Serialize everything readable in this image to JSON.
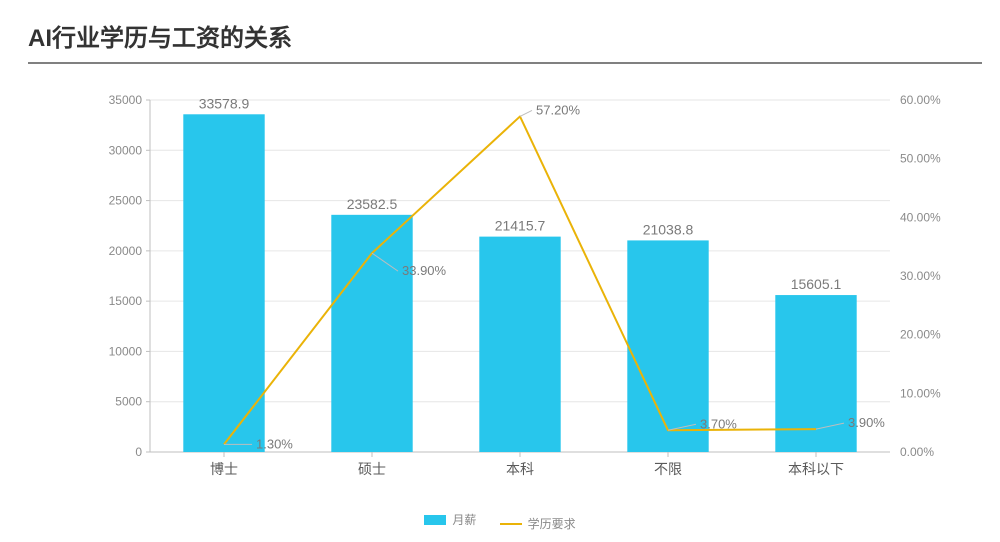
{
  "title": "AI行业学历与工资的关系",
  "title_fontsize": 24,
  "title_color": "#333333",
  "rule_color": "#808080",
  "chart": {
    "type": "bar+line",
    "categories": [
      "博士",
      "硕士",
      "本科",
      "不限",
      "本科以下"
    ],
    "bar_series": {
      "name": "月薪",
      "values": [
        33578.9,
        23582.5,
        21415.7,
        21038.8,
        15605.1
      ],
      "color": "#28c6ec",
      "bar_width": 0.55,
      "label_color": "#7a7a7a",
      "label_fontsize": 14
    },
    "line_series": {
      "name": "学历要求",
      "values_pct": [
        1.3,
        33.9,
        57.2,
        3.7,
        3.9
      ],
      "color": "#eab308",
      "stroke_width": 2,
      "label_color": "#7a7a7a",
      "label_fontsize": 13,
      "label_suffix": "%"
    },
    "y_left": {
      "min": 0,
      "max": 35000,
      "tick_step": 5000,
      "ticks": [
        "0",
        "5000",
        "10000",
        "15000",
        "20000",
        "25000",
        "30000",
        "35000"
      ],
      "tick_fontsize": 12,
      "tick_color": "#8a8a8a"
    },
    "y_right": {
      "min": 0,
      "max": 60,
      "tick_step": 10,
      "ticks": [
        "0.00%",
        "10.00%",
        "20.00%",
        "30.00%",
        "40.00%",
        "50.00%",
        "60.00%"
      ],
      "tick_fontsize": 12,
      "tick_color": "#8a8a8a"
    },
    "x_axis": {
      "tick_fontsize": 14,
      "tick_color": "#5a5a5a"
    },
    "grid": {
      "show": true,
      "color": "#e6e6e6",
      "stroke_width": 1
    },
    "background_color": "#ffffff",
    "axis_line_color": "#bfbfbf"
  },
  "legend": {
    "items": [
      {
        "type": "bar",
        "label": "月薪",
        "color": "#28c6ec"
      },
      {
        "type": "line",
        "label": "学历要求",
        "color": "#eab308"
      }
    ],
    "fontsize": 12,
    "color": "#8a8a8a"
  }
}
